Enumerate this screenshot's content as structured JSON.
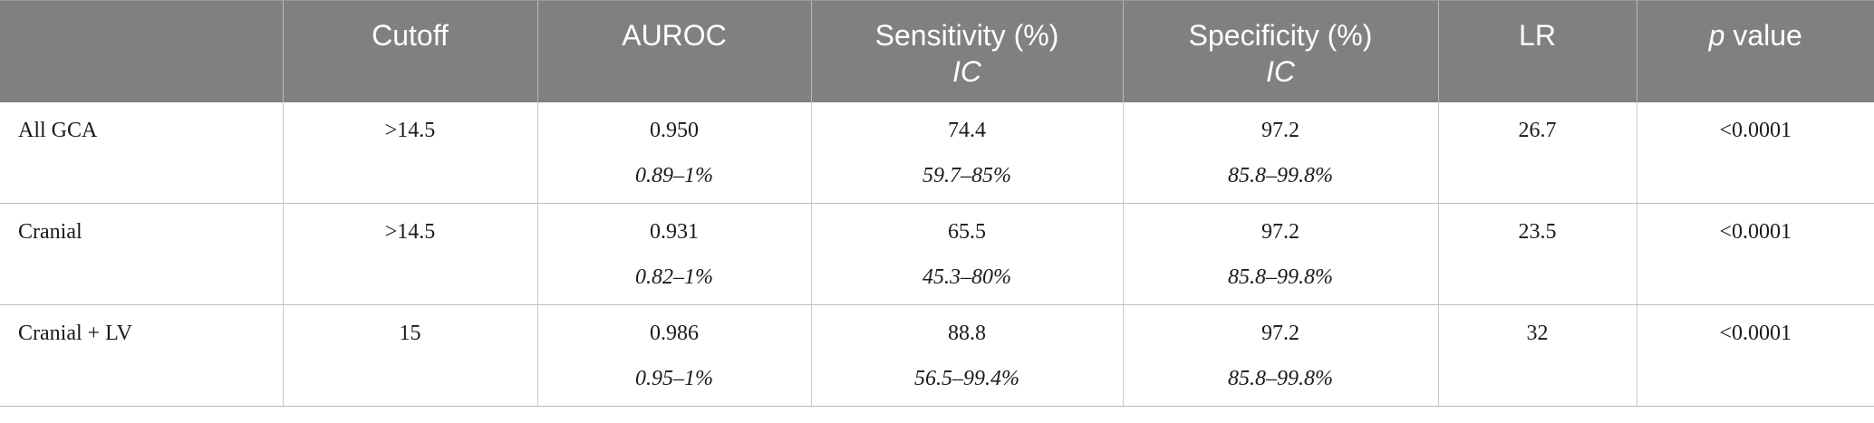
{
  "table": {
    "headers": [
      {
        "main": "",
        "sub": ""
      },
      {
        "main": "Cutoff",
        "sub": ""
      },
      {
        "main": "AUROC",
        "sub": ""
      },
      {
        "main": "Sensitivity (%)",
        "sub": "IC"
      },
      {
        "main": "Specificity (%)",
        "sub": "IC"
      },
      {
        "main": "LR",
        "sub": ""
      },
      {
        "main_italic": "p",
        "main": " value",
        "sub": ""
      }
    ],
    "rows": [
      {
        "label": "All GCA",
        "cutoff": ">14.5",
        "auroc": "0.950",
        "auroc_ci": "0.89–1%",
        "sens": "74.4",
        "sens_ci": "59.7–85%",
        "spec": "97.2",
        "spec_ci": "85.8–99.8%",
        "lr": "26.7",
        "p": "<0.0001"
      },
      {
        "label": "Cranial",
        "cutoff": ">14.5",
        "auroc": "0.931",
        "auroc_ci": "0.82–1%",
        "sens": "65.5",
        "sens_ci": "45.3–80%",
        "spec": "97.2",
        "spec_ci": "85.8–99.8%",
        "lr": "23.5",
        "p": "<0.0001"
      },
      {
        "label": "Cranial + LV",
        "cutoff": "15",
        "auroc": "0.986",
        "auroc_ci": "0.95–1%",
        "sens": "88.8",
        "sens_ci": "56.5–99.4%",
        "spec": "97.2",
        "spec_ci": "85.8–99.8%",
        "lr": "32",
        "p": "<0.0001"
      }
    ]
  }
}
